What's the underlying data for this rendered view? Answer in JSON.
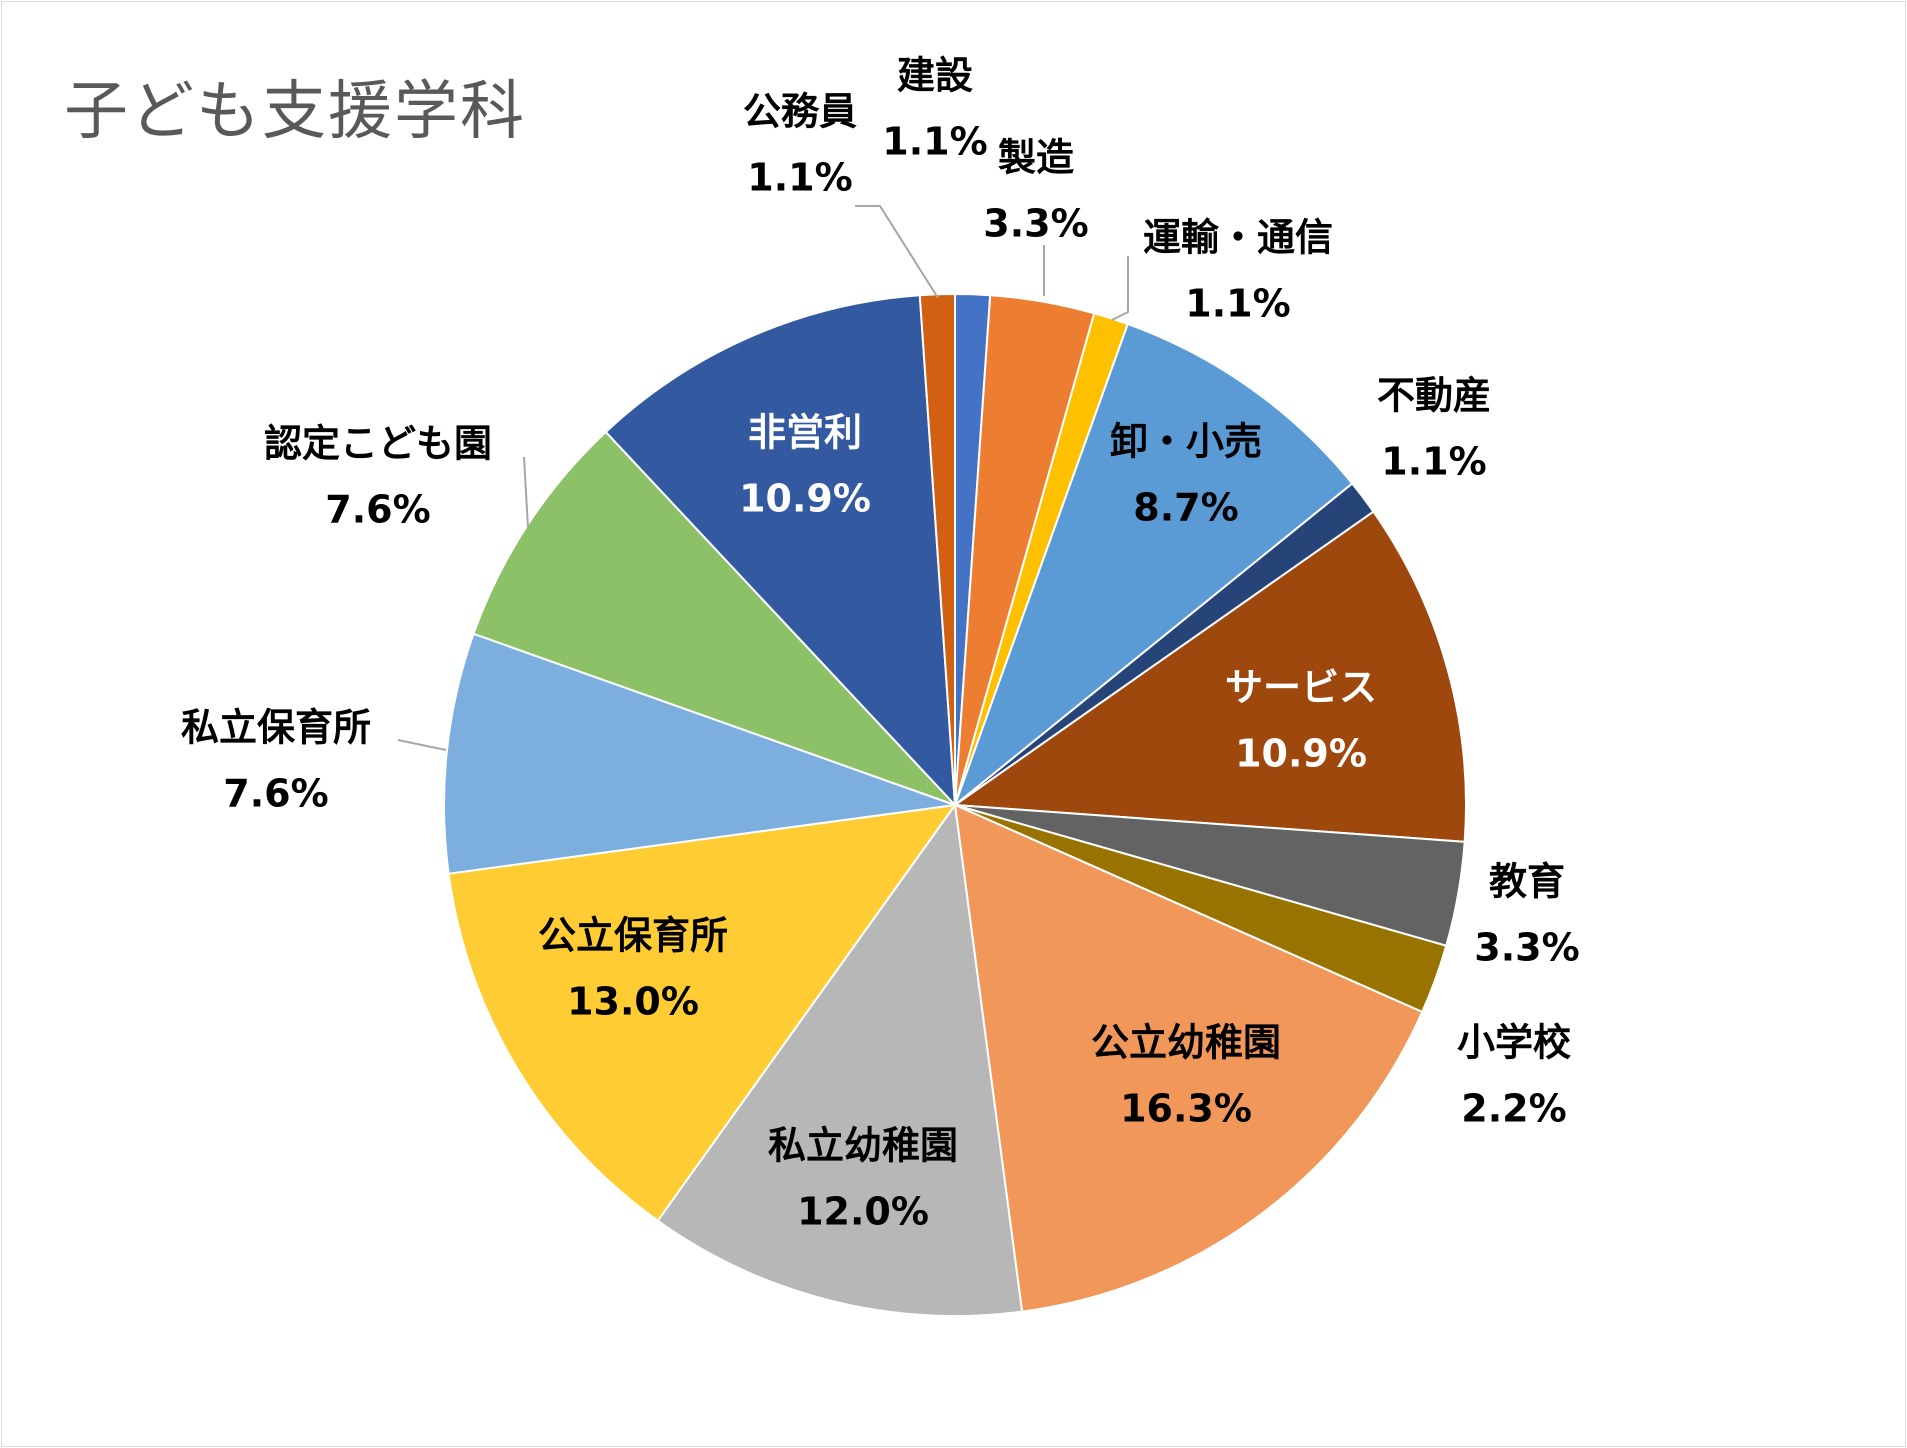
{
  "chart_data": {
    "type": "pie",
    "title": "子ども支援学科",
    "slices": [
      {
        "label": "建設",
        "value": 1.1,
        "pct_text": "1.1%",
        "color": "#4472C4",
        "text_color": "#000000"
      },
      {
        "label": "製造",
        "value": 3.3,
        "pct_text": "3.3%",
        "color": "#ED7D31",
        "text_color": "#000000"
      },
      {
        "label": "運輸・通信",
        "value": 1.1,
        "pct_text": "1.1%",
        "color": "#FFC000",
        "text_color": "#000000"
      },
      {
        "label": "卸・小売",
        "value": 8.7,
        "pct_text": "8.7%",
        "color": "#5B9BD5",
        "text_color": "#000000"
      },
      {
        "label": "不動産",
        "value": 1.1,
        "pct_text": "1.1%",
        "color": "#264478",
        "text_color": "#000000"
      },
      {
        "label": "サービス",
        "value": 10.9,
        "pct_text": "10.9%",
        "color": "#9E480E",
        "text_color": "#ffffff"
      },
      {
        "label": "教育",
        "value": 3.3,
        "pct_text": "3.3%",
        "color": "#636363",
        "text_color": "#000000"
      },
      {
        "label": "小学校",
        "value": 2.2,
        "pct_text": "2.2%",
        "color": "#997300",
        "text_color": "#000000"
      },
      {
        "label": "公立幼稚園",
        "value": 16.3,
        "pct_text": "16.3%",
        "color": "#F1975A",
        "text_color": "#000000"
      },
      {
        "label": "私立幼稚園",
        "value": 12.0,
        "pct_text": "12.0%",
        "color": "#B7B7B7",
        "text_color": "#000000"
      },
      {
        "label": "公立保育所",
        "value": 13.0,
        "pct_text": "13.0%",
        "color": "#FFCD33",
        "text_color": "#000000"
      },
      {
        "label": "私立保育所",
        "value": 7.6,
        "pct_text": "7.6%",
        "color": "#7CAFDD",
        "text_color": "#000000"
      },
      {
        "label": "認定こども園",
        "value": 7.6,
        "pct_text": "7.6%",
        "color": "#8CC168",
        "text_color": "#000000"
      },
      {
        "label": "非営利",
        "value": 10.9,
        "pct_text": "10.9%",
        "color": "#335AA1",
        "text_color": "#ffffff"
      },
      {
        "label": "公務員",
        "value": 1.1,
        "pct_text": "1.1%",
        "color": "#D26012",
        "text_color": "#000000"
      }
    ]
  }
}
